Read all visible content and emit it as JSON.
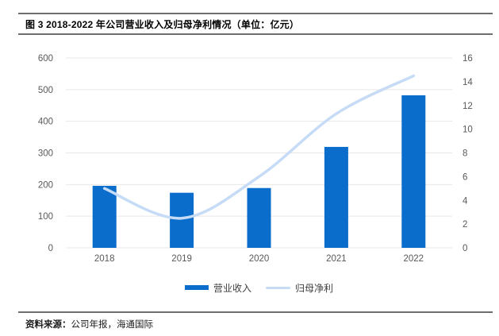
{
  "figure": {
    "title": "图 3 2018-2022 年公司营业收入及归母净利情况（单位：亿元）",
    "source_label": "资料来源：",
    "source_text": "公司年报，海通国际"
  },
  "legend": [
    {
      "label": "营业收入",
      "swatch": "bar-swatch"
    },
    {
      "label": "归母净利",
      "swatch": "line-swatch"
    }
  ],
  "colors": {
    "bar": "#0a6ccb",
    "line": "#c6dcf6",
    "grid": "#e7e7e7",
    "axis_text": "#595959",
    "legend_text": "#404040",
    "rule": "#6e6e6e"
  },
  "chart_data": {
    "type": "bar",
    "subtype": "bar+line-combo",
    "title": "图 3 2018-2022 年公司营业收入及归母净利情况（单位：亿元）",
    "categories": [
      "2018",
      "2019",
      "2020",
      "2021",
      "2022"
    ],
    "series": [
      {
        "name": "营业收入",
        "type": "bar",
        "axis": "left",
        "values": [
          196,
          174,
          189,
          319,
          482
        ]
      },
      {
        "name": "归母净利",
        "type": "line",
        "axis": "right",
        "values": [
          5.0,
          2.5,
          6.0,
          11.3,
          14.5
        ]
      }
    ],
    "xlabel": "",
    "ylabel": "",
    "left_axis": {
      "min": 0,
      "max": 600,
      "step": 100,
      "ticks": [
        0,
        100,
        200,
        300,
        400,
        500,
        600
      ]
    },
    "right_axis": {
      "min": 0,
      "max": 16,
      "step": 2,
      "ticks": [
        0,
        2,
        4,
        6,
        8,
        10,
        12,
        14,
        16
      ]
    },
    "grid": true,
    "legend_position": "bottom"
  }
}
